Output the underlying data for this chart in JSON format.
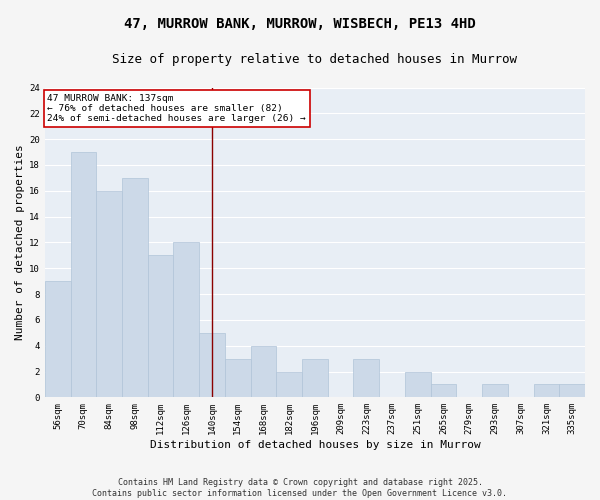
{
  "title_line1": "47, MURROW BANK, MURROW, WISBECH, PE13 4HD",
  "title_line2": "Size of property relative to detached houses in Murrow",
  "xlabel": "Distribution of detached houses by size in Murrow",
  "ylabel": "Number of detached properties",
  "categories": [
    "56sqm",
    "70sqm",
    "84sqm",
    "98sqm",
    "112sqm",
    "126sqm",
    "140sqm",
    "154sqm",
    "168sqm",
    "182sqm",
    "196sqm",
    "209sqm",
    "223sqm",
    "237sqm",
    "251sqm",
    "265sqm",
    "279sqm",
    "293sqm",
    "307sqm",
    "321sqm",
    "335sqm"
  ],
  "values": [
    9,
    19,
    16,
    17,
    11,
    12,
    5,
    3,
    4,
    2,
    3,
    0,
    3,
    0,
    2,
    1,
    0,
    1,
    0,
    1,
    1
  ],
  "bar_color": "#ccd9e8",
  "bar_edge_color": "#b0c4d8",
  "plot_bg_color": "#e8eef5",
  "fig_bg_color": "#f5f5f5",
  "grid_color": "#ffffff",
  "vline_x_index": 6,
  "vline_color": "#8b0000",
  "annotation_text": "47 MURROW BANK: 137sqm\n← 76% of detached houses are smaller (82)\n24% of semi-detached houses are larger (26) →",
  "annotation_box_facecolor": "#ffffff",
  "annotation_box_edgecolor": "#cc0000",
  "ylim": [
    0,
    24
  ],
  "yticks": [
    0,
    2,
    4,
    6,
    8,
    10,
    12,
    14,
    16,
    18,
    20,
    22,
    24
  ],
  "footer_text": "Contains HM Land Registry data © Crown copyright and database right 2025.\nContains public sector information licensed under the Open Government Licence v3.0.",
  "title_fontsize": 10,
  "subtitle_fontsize": 9,
  "axis_label_fontsize": 8,
  "tick_fontsize": 6.5,
  "annotation_fontsize": 6.8,
  "footer_fontsize": 6
}
